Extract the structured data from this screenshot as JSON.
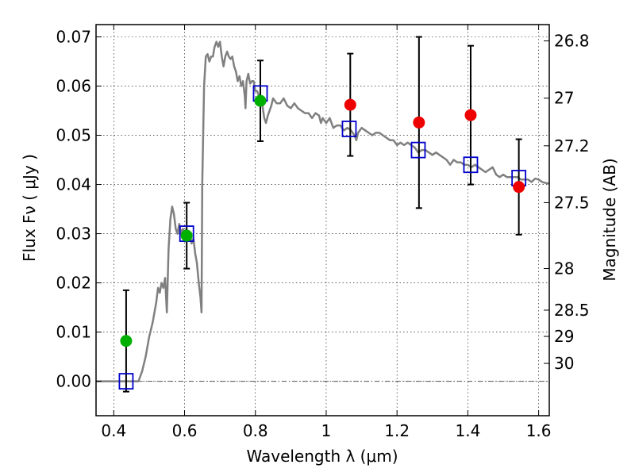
{
  "chart_data": {
    "type": "scatter",
    "xlabel": "Wavelength  λ (μm)",
    "ylabel": "Flux  Fν  ( μJy )",
    "ylabel_right": "Magnitude (AB)",
    "xlim": [
      0.35,
      1.63
    ],
    "ylim": [
      -0.007,
      0.0725
    ],
    "x_ticks": [
      {
        "value": 0.4,
        "label": "0.4"
      },
      {
        "value": 0.6,
        "label": "0.6"
      },
      {
        "value": 0.8,
        "label": "0.8"
      },
      {
        "value": 1.0,
        "label": "1"
      },
      {
        "value": 1.2,
        "label": "1.2"
      },
      {
        "value": 1.4,
        "label": "1.4"
      },
      {
        "value": 1.6,
        "label": "1.6"
      }
    ],
    "y_ticks": [
      {
        "value": 0.0,
        "label": "0.00"
      },
      {
        "value": 0.01,
        "label": "0.01"
      },
      {
        "value": 0.02,
        "label": "0.02"
      },
      {
        "value": 0.03,
        "label": "0.03"
      },
      {
        "value": 0.04,
        "label": "0.04"
      },
      {
        "value": 0.05,
        "label": "0.05"
      },
      {
        "value": 0.06,
        "label": "0.06"
      },
      {
        "value": 0.07,
        "label": "0.07"
      }
    ],
    "magnitude_ticks": [
      {
        "value": 26.8,
        "label": "26.8"
      },
      {
        "value": 27,
        "label": "27"
      },
      {
        "value": 27.2,
        "label": "27.2"
      },
      {
        "value": 27.5,
        "label": "27.5"
      },
      {
        "value": 28,
        "label": "28"
      },
      {
        "value": 28.5,
        "label": "28.5"
      },
      {
        "value": 29,
        "label": "29"
      },
      {
        "value": 30,
        "label": "30"
      }
    ],
    "grid": true,
    "colors": {
      "model": "#808080",
      "model_flux": "#0000cc",
      "optical": "#00b000",
      "nir": "#ee0000",
      "errorbar": "#000000"
    },
    "series": [
      {
        "kind": "line",
        "points": [
          [
            0.35,
            0.0
          ],
          [
            0.47,
            0.0
          ],
          [
            0.48,
            0.002
          ],
          [
            0.49,
            0.005
          ],
          [
            0.5,
            0.009
          ],
          [
            0.51,
            0.012
          ],
          [
            0.52,
            0.016
          ],
          [
            0.525,
            0.019
          ],
          [
            0.53,
            0.018
          ],
          [
            0.535,
            0.02
          ],
          [
            0.54,
            0.019
          ],
          [
            0.545,
            0.021
          ],
          [
            0.55,
            0.014
          ],
          [
            0.555,
            0.027
          ],
          [
            0.56,
            0.033
          ],
          [
            0.565,
            0.0355
          ],
          [
            0.57,
            0.034
          ],
          [
            0.575,
            0.031
          ],
          [
            0.58,
            0.03
          ],
          [
            0.585,
            0.032
          ],
          [
            0.59,
            0.03
          ],
          [
            0.595,
            0.031
          ],
          [
            0.6,
            0.03
          ],
          [
            0.605,
            0.031
          ],
          [
            0.61,
            0.029
          ],
          [
            0.615,
            0.03
          ],
          [
            0.62,
            0.028
          ],
          [
            0.625,
            0.029
          ],
          [
            0.63,
            0.026
          ],
          [
            0.635,
            0.024
          ],
          [
            0.64,
            0.02
          ],
          [
            0.645,
            0.017
          ],
          [
            0.648,
            0.014
          ],
          [
            0.65,
            0.04
          ],
          [
            0.655,
            0.06
          ],
          [
            0.66,
            0.066
          ],
          [
            0.665,
            0.0665
          ],
          [
            0.67,
            0.065
          ],
          [
            0.675,
            0.066
          ],
          [
            0.68,
            0.066
          ],
          [
            0.685,
            0.068
          ],
          [
            0.69,
            0.069
          ],
          [
            0.695,
            0.068
          ],
          [
            0.7,
            0.069
          ],
          [
            0.705,
            0.066
          ],
          [
            0.71,
            0.064
          ],
          [
            0.715,
            0.066
          ],
          [
            0.72,
            0.067
          ],
          [
            0.725,
            0.066
          ],
          [
            0.73,
            0.0655
          ],
          [
            0.735,
            0.066
          ],
          [
            0.74,
            0.064
          ],
          [
            0.745,
            0.063
          ],
          [
            0.75,
            0.061
          ],
          [
            0.755,
            0.062
          ],
          [
            0.76,
            0.06
          ],
          [
            0.765,
            0.061
          ],
          [
            0.77,
            0.058
          ],
          [
            0.772,
            0.0555
          ],
          [
            0.775,
            0.061
          ],
          [
            0.78,
            0.0625
          ],
          [
            0.785,
            0.0605
          ],
          [
            0.79,
            0.061
          ],
          [
            0.795,
            0.061
          ],
          [
            0.8,
            0.059
          ],
          [
            0.805,
            0.059
          ],
          [
            0.81,
            0.058
          ],
          [
            0.815,
            0.057
          ],
          [
            0.82,
            0.056
          ],
          [
            0.825,
            0.0535
          ],
          [
            0.83,
            0.0525
          ],
          [
            0.835,
            0.054
          ],
          [
            0.84,
            0.055
          ],
          [
            0.845,
            0.056
          ],
          [
            0.85,
            0.0575
          ],
          [
            0.86,
            0.0565
          ],
          [
            0.87,
            0.0565
          ],
          [
            0.88,
            0.0575
          ],
          [
            0.89,
            0.056
          ],
          [
            0.9,
            0.0555
          ],
          [
            0.91,
            0.0565
          ],
          [
            0.92,
            0.0555
          ],
          [
            0.93,
            0.055
          ],
          [
            0.94,
            0.0545
          ],
          [
            0.95,
            0.0545
          ],
          [
            0.96,
            0.0535
          ],
          [
            0.97,
            0.0545
          ],
          [
            0.98,
            0.054
          ],
          [
            0.985,
            0.0525
          ],
          [
            0.99,
            0.0535
          ],
          [
            1.0,
            0.0525
          ],
          [
            1.01,
            0.0535
          ],
          [
            1.02,
            0.0515
          ],
          [
            1.03,
            0.052
          ],
          [
            1.04,
            0.052
          ],
          [
            1.05,
            0.051
          ],
          [
            1.06,
            0.0515
          ],
          [
            1.07,
            0.051
          ],
          [
            1.08,
            0.05
          ],
          [
            1.085,
            0.049
          ],
          [
            1.09,
            0.0505
          ],
          [
            1.1,
            0.0515
          ],
          [
            1.11,
            0.051
          ],
          [
            1.12,
            0.0505
          ],
          [
            1.13,
            0.05
          ],
          [
            1.14,
            0.0505
          ],
          [
            1.15,
            0.0505
          ],
          [
            1.16,
            0.05
          ],
          [
            1.17,
            0.0495
          ],
          [
            1.18,
            0.049
          ],
          [
            1.19,
            0.049
          ],
          [
            1.2,
            0.048
          ],
          [
            1.21,
            0.0485
          ],
          [
            1.22,
            0.048
          ],
          [
            1.23,
            0.0485
          ],
          [
            1.24,
            0.048
          ],
          [
            1.25,
            0.0475
          ],
          [
            1.26,
            0.0465
          ],
          [
            1.27,
            0.047
          ],
          [
            1.28,
            0.047
          ],
          [
            1.29,
            0.0465
          ],
          [
            1.3,
            0.046
          ],
          [
            1.31,
            0.0465
          ],
          [
            1.32,
            0.046
          ],
          [
            1.33,
            0.0455
          ],
          [
            1.34,
            0.045
          ],
          [
            1.35,
            0.044
          ],
          [
            1.36,
            0.045
          ],
          [
            1.37,
            0.0445
          ],
          [
            1.38,
            0.0445
          ],
          [
            1.39,
            0.044
          ],
          [
            1.4,
            0.044
          ],
          [
            1.41,
            0.0435
          ],
          [
            1.42,
            0.044
          ],
          [
            1.43,
            0.0435
          ],
          [
            1.44,
            0.043
          ],
          [
            1.45,
            0.0425
          ],
          [
            1.46,
            0.043
          ],
          [
            1.47,
            0.0435
          ],
          [
            1.48,
            0.042
          ],
          [
            1.49,
            0.0415
          ],
          [
            1.5,
            0.042
          ],
          [
            1.51,
            0.0415
          ],
          [
            1.52,
            0.0415
          ],
          [
            1.53,
            0.0415
          ],
          [
            1.54,
            0.0415
          ],
          [
            1.55,
            0.041
          ],
          [
            1.56,
            0.041
          ],
          [
            1.57,
            0.041
          ],
          [
            1.58,
            0.0405
          ],
          [
            1.59,
            0.0412
          ],
          [
            1.6,
            0.041
          ],
          [
            1.61,
            0.0405
          ],
          [
            1.62,
            0.0403
          ],
          [
            1.63,
            0.0402
          ]
        ]
      },
      {
        "kind": "square_markers",
        "x": [
          0.435,
          0.606,
          0.814,
          1.065,
          1.26,
          1.408,
          1.544
        ],
        "y": [
          0.0,
          0.03,
          0.0585,
          0.0513,
          0.047,
          0.044,
          0.0413
        ]
      },
      {
        "kind": "points_with_errorbars",
        "x": [
          0.435,
          0.606,
          0.814
        ],
        "y": [
          0.0082,
          0.0296,
          0.057
        ],
        "err": [
          0.0103,
          0.0067,
          0.0082
        ]
      },
      {
        "kind": "points_with_errorbars",
        "x": [
          1.068,
          1.262,
          1.408,
          1.544
        ],
        "y": [
          0.0562,
          0.0526,
          0.0541,
          0.0395
        ],
        "err": [
          0.0104,
          0.0174,
          0.0141,
          0.0097
        ]
      }
    ]
  }
}
